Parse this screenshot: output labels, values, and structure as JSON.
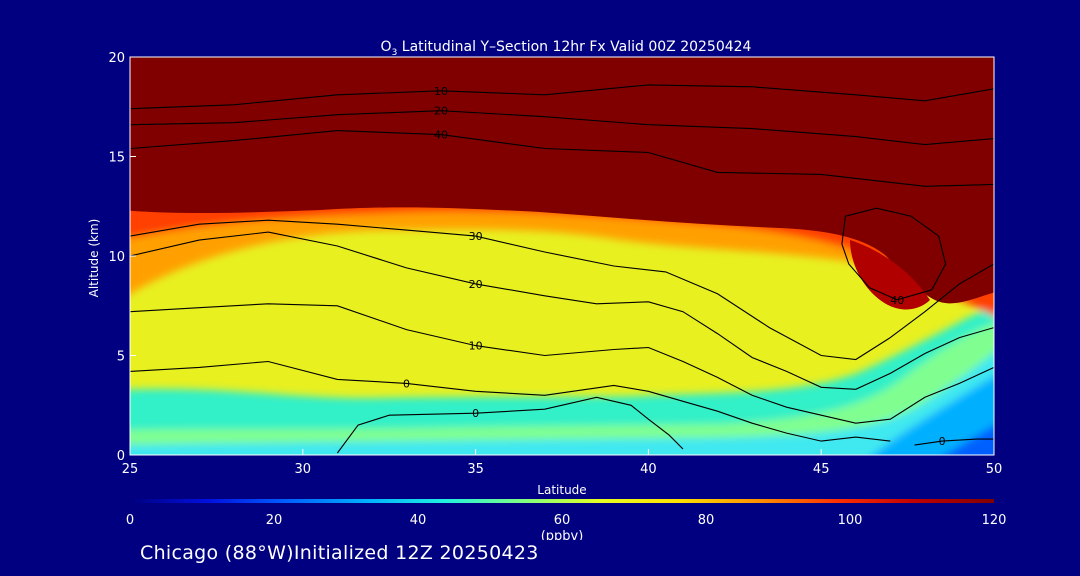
{
  "chart_data": {
    "type": "heatmap",
    "title": {
      "prefix": "O",
      "sub": "3",
      "rest": " Latitudinal Y–Section 12hr  Fx Valid 00Z 20250424"
    },
    "xlabel": "Latitude",
    "ylabel": "Altitude (km)",
    "xlim": [
      25,
      50
    ],
    "ylim": [
      0,
      20
    ],
    "xticks": [
      25,
      30,
      35,
      40,
      45,
      50
    ],
    "yticks": [
      0,
      5,
      10,
      15,
      20
    ],
    "colorbar": {
      "range": [
        0,
        120
      ],
      "ticks": [
        0,
        20,
        40,
        60,
        80,
        100,
        120
      ],
      "label": "(ppbv)",
      "colors": [
        "#000080",
        "#0010e0",
        "#0060ff",
        "#00b0ff",
        "#20f0e0",
        "#80ff80",
        "#e8ff20",
        "#ffe000",
        "#ff9000",
        "#ff3000",
        "#c00000",
        "#800000"
      ]
    },
    "grid": false,
    "contours": [
      {
        "label": "0",
        "points": [
          [
            25,
            4.2
          ],
          [
            27,
            4.4
          ],
          [
            29,
            4.7
          ],
          [
            31,
            3.8
          ],
          [
            33,
            3.6
          ],
          [
            35,
            3.2
          ],
          [
            37,
            3.0
          ],
          [
            39,
            3.5
          ],
          [
            40,
            3.2
          ],
          [
            41,
            2.7
          ],
          [
            42,
            2.2
          ],
          [
            43,
            1.6
          ],
          [
            44,
            1.1
          ],
          [
            45,
            0.7
          ],
          [
            46,
            0.9
          ],
          [
            47,
            0.7
          ]
        ]
      },
      {
        "label": "0",
        "points": [
          [
            31,
            0.1
          ],
          [
            31.6,
            1.5
          ],
          [
            32.5,
            2.0
          ],
          [
            35,
            2.1
          ],
          [
            37,
            2.3
          ],
          [
            38.5,
            2.9
          ],
          [
            39.5,
            2.5
          ],
          [
            40,
            1.8
          ],
          [
            40.6,
            1.0
          ],
          [
            41,
            0.3
          ]
        ]
      },
      {
        "label": "0",
        "points": [
          [
            47.7,
            0.5
          ],
          [
            48.5,
            0.7
          ],
          [
            49.5,
            0.8
          ],
          [
            50,
            0.8
          ]
        ]
      },
      {
        "label": "10",
        "points": [
          [
            25,
            7.2
          ],
          [
            27,
            7.4
          ],
          [
            29,
            7.6
          ],
          [
            31,
            7.5
          ],
          [
            33,
            6.3
          ],
          [
            35,
            5.5
          ],
          [
            37,
            5.0
          ],
          [
            39,
            5.3
          ],
          [
            40,
            5.4
          ],
          [
            41,
            4.7
          ],
          [
            42,
            3.9
          ],
          [
            43,
            3.0
          ],
          [
            44,
            2.4
          ],
          [
            45,
            2.0
          ],
          [
            46,
            1.6
          ],
          [
            47,
            1.8
          ],
          [
            48,
            2.9
          ],
          [
            49,
            3.6
          ],
          [
            50,
            4.4
          ]
        ]
      },
      {
        "label": "20",
        "points": [
          [
            25,
            10.0
          ],
          [
            27,
            10.8
          ],
          [
            29,
            11.2
          ],
          [
            31,
            10.5
          ],
          [
            33,
            9.4
          ],
          [
            35,
            8.6
          ],
          [
            37,
            8.0
          ],
          [
            38.5,
            7.6
          ],
          [
            40,
            7.7
          ],
          [
            41,
            7.2
          ],
          [
            42,
            6.1
          ],
          [
            43,
            4.9
          ],
          [
            44,
            4.2
          ],
          [
            45,
            3.4
          ],
          [
            46,
            3.3
          ],
          [
            47,
            4.1
          ],
          [
            48,
            5.1
          ],
          [
            49,
            5.9
          ],
          [
            50,
            6.4
          ]
        ]
      },
      {
        "label": "30",
        "points": [
          [
            25,
            11.0
          ],
          [
            27,
            11.6
          ],
          [
            29,
            11.8
          ],
          [
            31,
            11.6
          ],
          [
            33,
            11.3
          ],
          [
            35,
            11.0
          ],
          [
            37,
            10.2
          ],
          [
            39,
            9.5
          ],
          [
            40.5,
            9.2
          ],
          [
            42,
            8.1
          ],
          [
            43.5,
            6.4
          ],
          [
            45,
            5.0
          ],
          [
            46,
            4.8
          ],
          [
            47,
            5.9
          ],
          [
            48,
            7.2
          ],
          [
            49,
            8.6
          ],
          [
            50,
            9.6
          ]
        ]
      },
      {
        "label": "40",
        "points": [
          [
            45.6,
            10.6
          ],
          [
            45.8,
            9.6
          ],
          [
            46.4,
            8.4
          ],
          [
            47.2,
            7.8
          ],
          [
            48.2,
            8.3
          ],
          [
            48.6,
            9.6
          ],
          [
            48.4,
            11.0
          ],
          [
            47.6,
            12.0
          ],
          [
            46.6,
            12.4
          ],
          [
            45.7,
            12.0
          ],
          [
            45.6,
            10.6
          ]
        ]
      },
      {
        "label": "10",
        "points": [
          [
            25,
            17.4
          ],
          [
            28,
            17.6
          ],
          [
            31,
            18.1
          ],
          [
            34,
            18.3
          ],
          [
            37,
            18.1
          ],
          [
            40,
            18.6
          ],
          [
            43,
            18.5
          ],
          [
            46,
            18.1
          ],
          [
            48,
            17.8
          ],
          [
            50,
            18.4
          ]
        ]
      },
      {
        "label": "20",
        "points": [
          [
            25,
            16.6
          ],
          [
            28,
            16.7
          ],
          [
            31,
            17.1
          ],
          [
            34,
            17.3
          ],
          [
            37,
            17.0
          ],
          [
            40,
            16.6
          ],
          [
            43,
            16.4
          ],
          [
            46,
            16.0
          ],
          [
            48,
            15.6
          ],
          [
            50,
            15.9
          ]
        ]
      },
      {
        "label": "40",
        "points": [
          [
            25,
            15.4
          ],
          [
            28,
            15.8
          ],
          [
            31,
            16.3
          ],
          [
            34,
            16.1
          ],
          [
            37,
            15.4
          ],
          [
            40,
            15.2
          ],
          [
            42,
            14.2
          ],
          [
            45,
            14.1
          ],
          [
            48,
            13.5
          ],
          [
            50,
            13.6
          ]
        ]
      }
    ]
  },
  "footer": "Chicago (88°W)Initialized 12Z 20250423"
}
